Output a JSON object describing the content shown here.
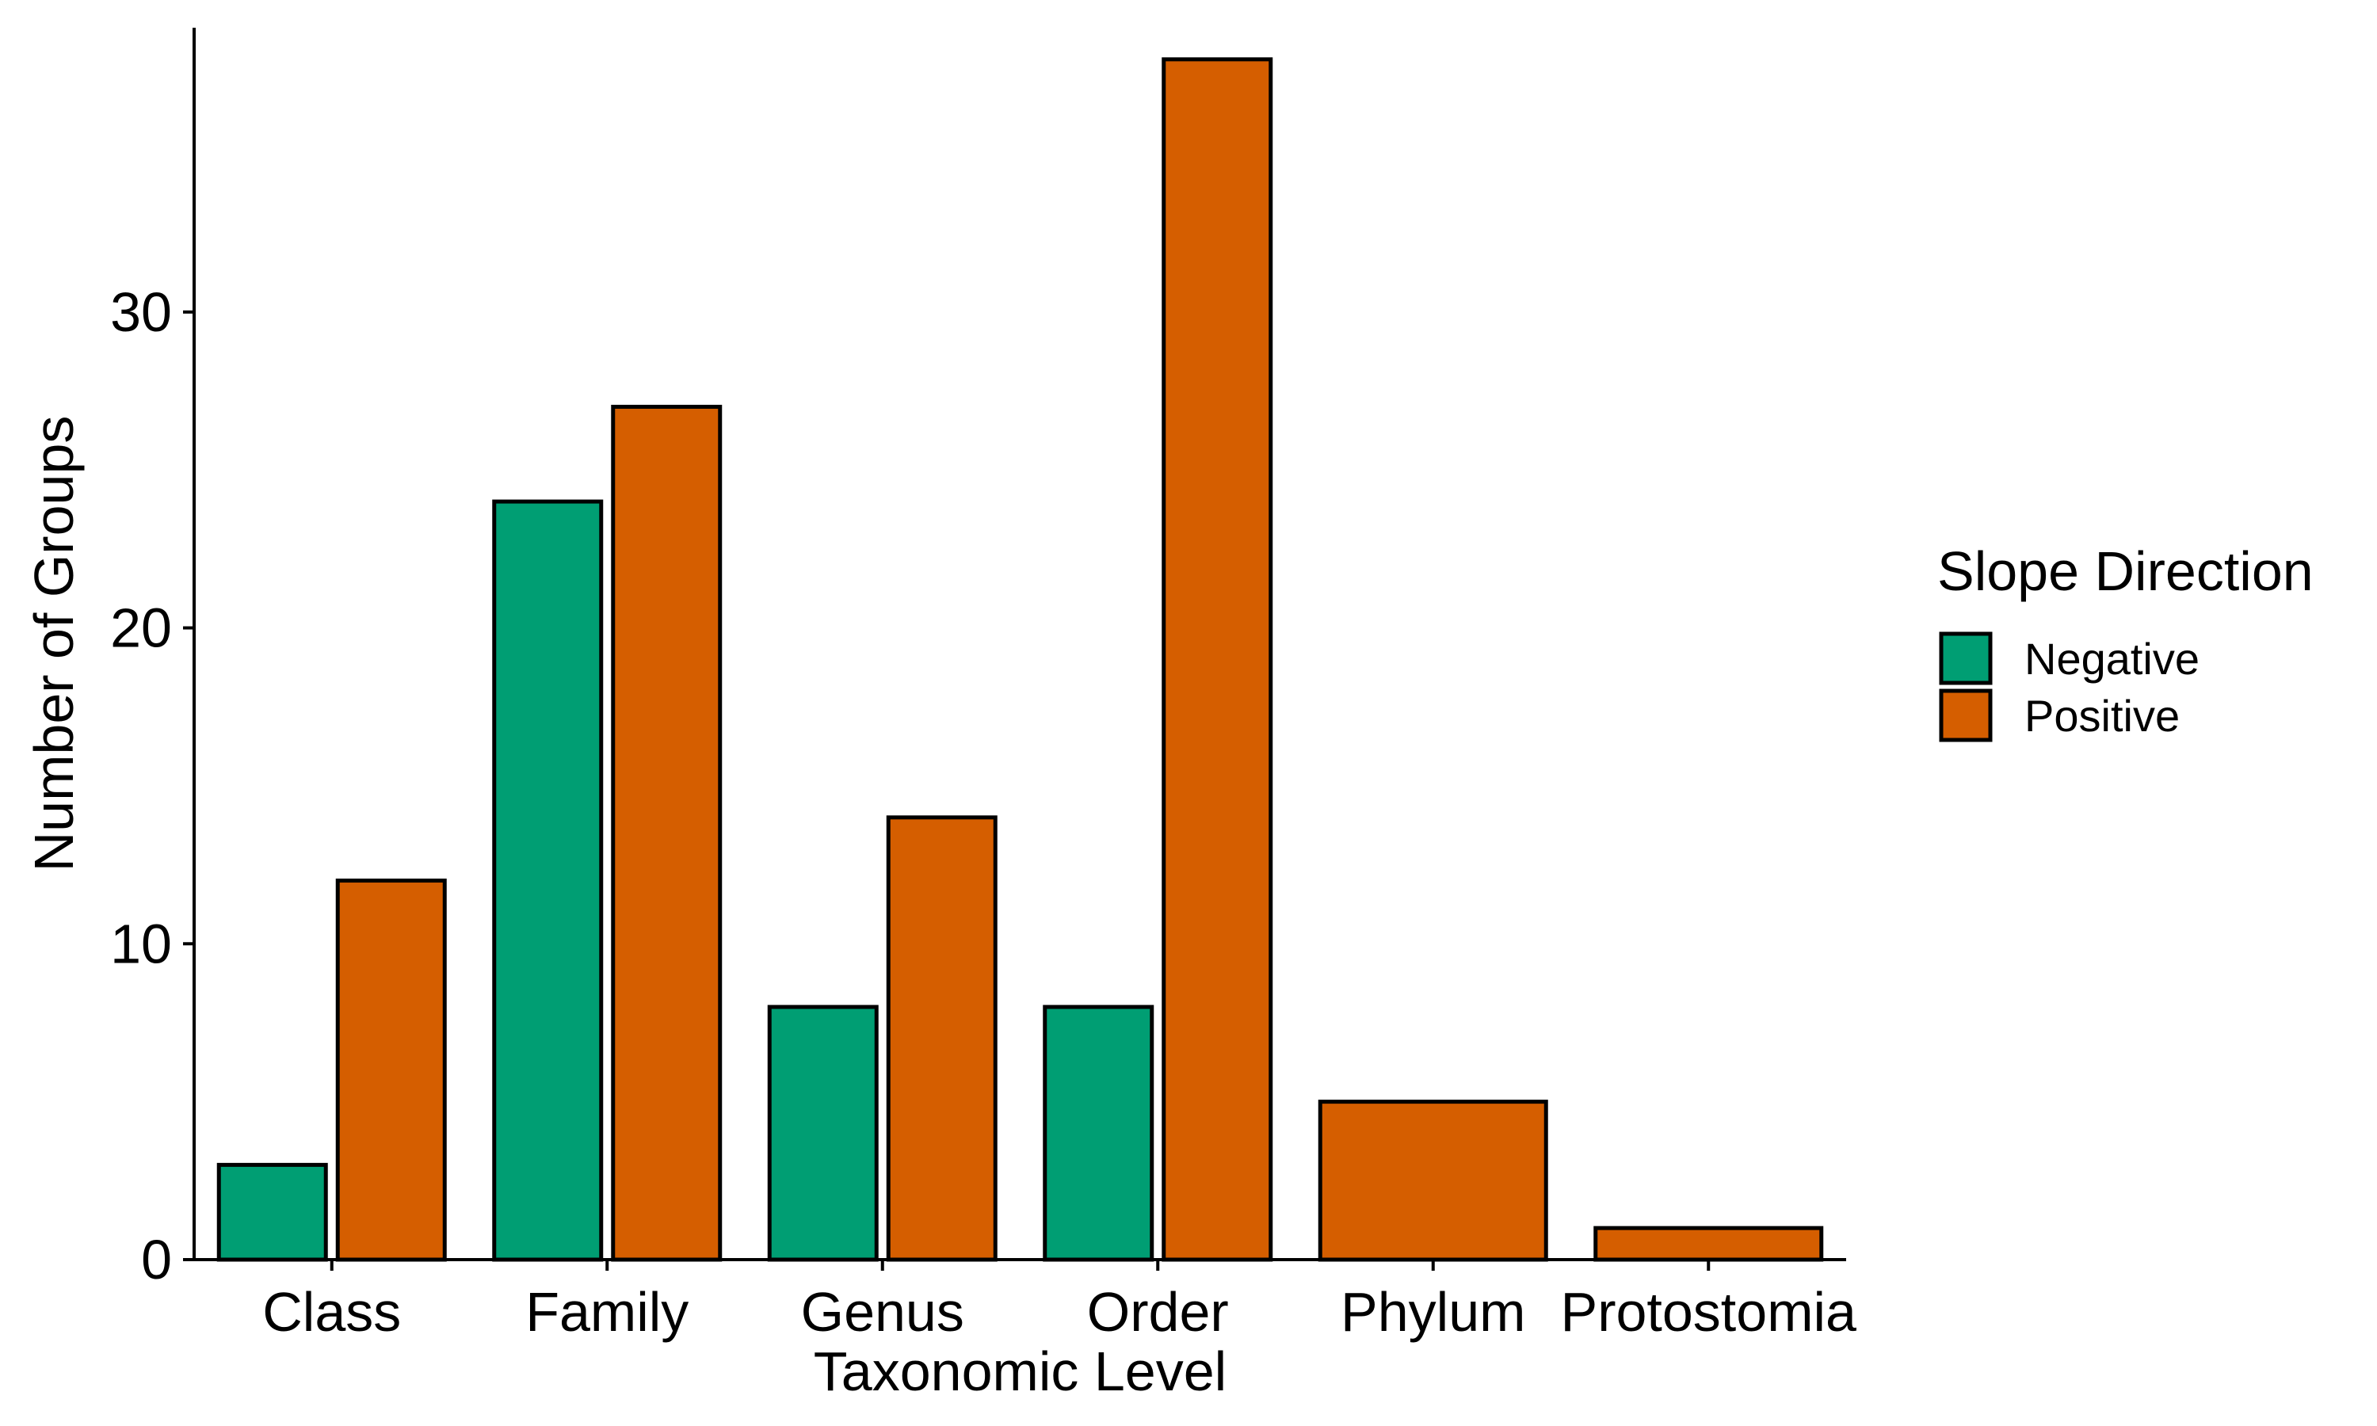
{
  "chart_data": {
    "type": "bar",
    "title": "",
    "xlabel": "Taxonomic Level",
    "ylabel": "Number of Groups",
    "categories": [
      "Class",
      "Family",
      "Genus",
      "Order",
      "Phylum",
      "Protostomia"
    ],
    "series": [
      {
        "name": "Negative",
        "color": "#009E73",
        "values": [
          3,
          24,
          8,
          8,
          null,
          null
        ]
      },
      {
        "name": "Positive",
        "color": "#D55E00",
        "values": [
          12,
          27,
          14,
          38,
          5,
          1
        ]
      }
    ],
    "ylim": [
      0,
      39
    ],
    "yticks": [
      0,
      10,
      20,
      30
    ],
    "ytick_labels": [
      "0",
      "10",
      "20",
      "30"
    ],
    "grid": false,
    "legend": {
      "title": "Slope Direction",
      "placement": "right",
      "entries": [
        "Negative",
        "Positive"
      ]
    },
    "bar_outline_color": "#000000"
  }
}
